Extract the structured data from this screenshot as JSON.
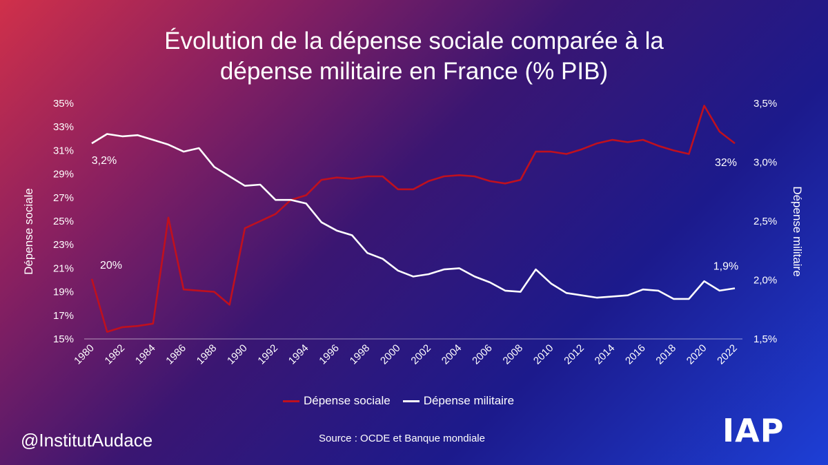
{
  "title_line1": "Évolution de la dépense sociale comparée à la",
  "title_line2": "dépense militaire en France (% PIB)",
  "handle": "@InstitutAudace",
  "source": "Source : OCDE et Banque mondiale",
  "logo": "IAP",
  "chart_data": {
    "type": "line",
    "x": [
      1980,
      1981,
      1982,
      1983,
      1984,
      1985,
      1986,
      1987,
      1988,
      1989,
      1990,
      1991,
      1992,
      1993,
      1994,
      1995,
      1996,
      1997,
      1998,
      1999,
      2000,
      2001,
      2002,
      2003,
      2004,
      2005,
      2006,
      2007,
      2008,
      2009,
      2010,
      2011,
      2012,
      2013,
      2014,
      2015,
      2016,
      2017,
      2018,
      2019,
      2020,
      2021,
      2022
    ],
    "x_ticks": [
      "1980",
      "1982",
      "1984",
      "1986",
      "1988",
      "1990",
      "1992",
      "1994",
      "1996",
      "1998",
      "2000",
      "2002",
      "2004",
      "2006",
      "2008",
      "2010",
      "2012",
      "2014",
      "2016",
      "2018",
      "2020",
      "2022"
    ],
    "series": [
      {
        "name": "Dépense sociale",
        "axis": "left",
        "color": "#c0101e",
        "values": [
          20.1,
          15.6,
          16.0,
          16.1,
          16.3,
          25.3,
          19.2,
          19.1,
          19.0,
          17.9,
          24.4,
          25.0,
          25.6,
          26.8,
          27.2,
          28.5,
          28.7,
          28.6,
          28.8,
          28.8,
          27.7,
          27.7,
          28.4,
          28.8,
          28.9,
          28.8,
          28.4,
          28.2,
          28.5,
          30.9,
          30.9,
          30.7,
          31.1,
          31.6,
          31.9,
          31.7,
          31.9,
          31.4,
          31.0,
          30.7,
          34.8,
          32.6,
          31.6
        ]
      },
      {
        "name": "Dépense militaire",
        "axis": "right",
        "color": "#ffffff",
        "values": [
          3.16,
          3.24,
          3.22,
          3.23,
          3.19,
          3.15,
          3.09,
          3.12,
          2.96,
          2.88,
          2.8,
          2.81,
          2.68,
          2.68,
          2.65,
          2.49,
          2.42,
          2.38,
          2.23,
          2.18,
          2.08,
          2.03,
          2.05,
          2.09,
          2.1,
          2.03,
          1.98,
          1.91,
          1.9,
          2.09,
          1.97,
          1.89,
          1.87,
          1.85,
          1.86,
          1.87,
          1.92,
          1.91,
          1.84,
          1.84,
          1.99,
          1.91,
          1.93
        ]
      }
    ],
    "y_left": {
      "title": "Dépense sociale",
      "ylim": [
        15,
        35
      ],
      "ticks": [
        "15%",
        "17%",
        "19%",
        "21%",
        "23%",
        "25%",
        "27%",
        "29%",
        "31%",
        "33%",
        "35%"
      ]
    },
    "y_right": {
      "title": "Dépense militaire",
      "ylim": [
        1.5,
        3.5
      ],
      "ticks": [
        "1,5%",
        "2,0%",
        "2,5%",
        "3,0%",
        "3,5%"
      ]
    },
    "annotations": [
      {
        "text": "3,2%",
        "series": "Dépense militaire",
        "year": 1980
      },
      {
        "text": "20%",
        "series": "Dépense sociale",
        "year": 1980
      },
      {
        "text": "32%",
        "series": "Dépense sociale",
        "year": 2022
      },
      {
        "text": "1,9%",
        "series": "Dépense militaire",
        "year": 2022
      }
    ],
    "legend": "bottom",
    "grid": false
  }
}
